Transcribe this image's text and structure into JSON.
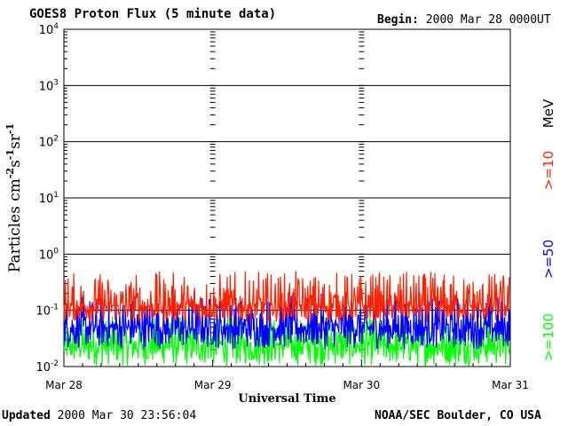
{
  "header": {
    "title": "GOES8 Proton Flux (5 minute data)",
    "begin_label": "Begin:",
    "begin_value": "2000 Mar 28 0000UT"
  },
  "footer": {
    "updated_label": "Updated",
    "updated_value": "2000 Mar 30 23:56:04",
    "credit": "NOAA/SEC Boulder, CO USA"
  },
  "chart_data": {
    "type": "line",
    "ylabel_base": "Particles cm",
    "ylabel_parts": [
      "-2",
      "s",
      "-1",
      "sr",
      "-1"
    ],
    "xlabel": "Universal Time",
    "yscale": "log",
    "ylim": [
      0.01,
      10000
    ],
    "y_ticks": [
      {
        "value": 10000,
        "base": "10",
        "exp": "4"
      },
      {
        "value": 1000,
        "base": "10",
        "exp": "3"
      },
      {
        "value": 100,
        "base": "10",
        "exp": "2"
      },
      {
        "value": 10,
        "base": "10",
        "exp": "1"
      },
      {
        "value": 1,
        "base": "10",
        "exp": "0"
      },
      {
        "value": 0.1,
        "base": "10",
        "exp": "-1"
      },
      {
        "value": 0.01,
        "base": "10",
        "exp": "-2"
      }
    ],
    "x_ticks": [
      "Mar 28",
      "Mar 29",
      "Mar 30",
      "Mar 31"
    ],
    "x_range_days": [
      0,
      3
    ],
    "grid": true,
    "series": [
      {
        "name": ">=10",
        "color": "#ff2000",
        "median": 0.12,
        "range": [
          0.06,
          0.5
        ]
      },
      {
        "name": ">=50",
        "color": "#0000ff",
        "median": 0.05,
        "range": [
          0.02,
          0.2
        ]
      },
      {
        "name": ">=100",
        "color": "#00ff00",
        "median": 0.025,
        "range": [
          0.01,
          0.08
        ]
      }
    ],
    "unit_label": "MeV"
  }
}
